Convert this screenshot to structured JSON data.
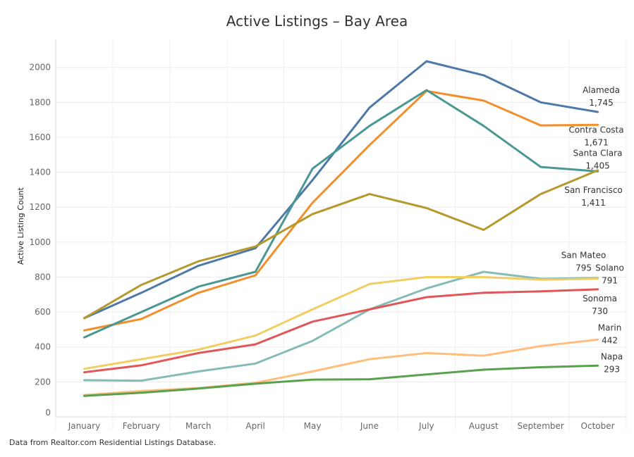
{
  "page": {
    "title": "Active Listings – Bay Area",
    "footer": "Data from Realtor.com Residential Listings Database."
  },
  "chart_data": {
    "type": "line",
    "title": "Active Listings – Bay Area",
    "xlabel": "",
    "ylabel": "Active Listing Count",
    "ylim": [
      0,
      2160
    ],
    "yticks": [
      0,
      200,
      400,
      600,
      800,
      1000,
      1200,
      1400,
      1600,
      1800,
      2000
    ],
    "categories": [
      "January",
      "February",
      "March",
      "April",
      "May",
      "June",
      "July",
      "August",
      "September",
      "October"
    ],
    "grid": true,
    "legend": "none (direct end labels)",
    "series": [
      {
        "name": "Alameda",
        "end_label": "1,745",
        "color": "#4e79a7",
        "values": [
          565,
          710,
          865,
          965,
          1355,
          1770,
          2035,
          1955,
          1800,
          1745
        ]
      },
      {
        "name": "Contra Costa",
        "end_label": "1,671",
        "color": "#f28e2b",
        "values": [
          495,
          560,
          710,
          810,
          1225,
          1555,
          1865,
          1810,
          1668,
          1671
        ]
      },
      {
        "name": "Santa Clara",
        "end_label": "1,405",
        "color": "#499894",
        "values": [
          455,
          600,
          745,
          830,
          1420,
          1665,
          1870,
          1665,
          1430,
          1405
        ]
      },
      {
        "name": "San Francisco",
        "end_label": "1,411",
        "color": "#b6992d",
        "values": [
          565,
          755,
          890,
          975,
          1160,
          1275,
          1195,
          1070,
          1275,
          1411
        ]
      },
      {
        "name": "San Mateo",
        "end_label": "795",
        "color": "#86bcb6",
        "values": [
          210,
          207,
          260,
          305,
          435,
          615,
          735,
          830,
          790,
          795
        ]
      },
      {
        "name": "Solano",
        "end_label": "791",
        "color": "#f1ce63",
        "values": [
          275,
          330,
          385,
          465,
          615,
          760,
          800,
          800,
          785,
          791
        ]
      },
      {
        "name": "Sonoma",
        "end_label": "730",
        "color": "#e15759",
        "values": [
          255,
          295,
          365,
          415,
          545,
          615,
          685,
          710,
          718,
          730
        ]
      },
      {
        "name": "Marin",
        "end_label": "442",
        "color": "#ffbe7d",
        "values": [
          125,
          148,
          165,
          195,
          260,
          330,
          365,
          350,
          405,
          442
        ]
      },
      {
        "name": "Napa",
        "end_label": "293",
        "color": "#59a14f",
        "values": [
          120,
          138,
          162,
          190,
          213,
          215,
          243,
          270,
          284,
          293
        ]
      }
    ]
  }
}
